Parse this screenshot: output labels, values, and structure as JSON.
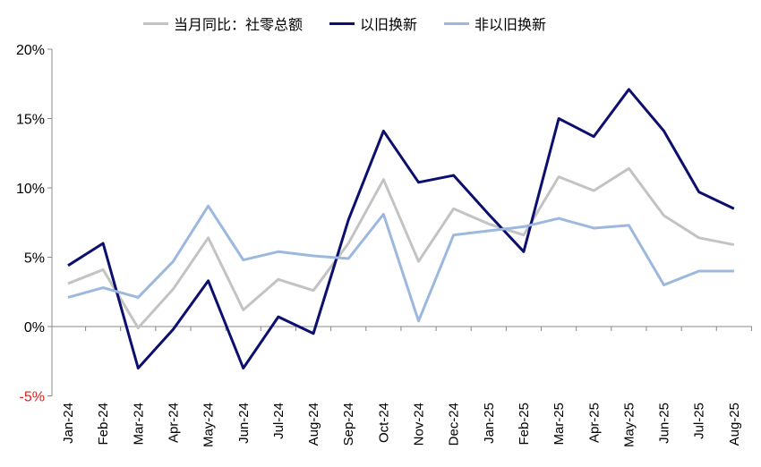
{
  "chart_data": {
    "type": "line",
    "title": "",
    "xlabel": "",
    "ylabel": "",
    "ylim": [
      -5,
      20
    ],
    "yticks": [
      "-5%",
      "0%",
      "5%",
      "10%",
      "15%",
      "20%"
    ],
    "ytick_values": [
      -5,
      0,
      5,
      10,
      15,
      20
    ],
    "negative_tick_color": "#e0201b",
    "legend_position": "top",
    "categories": [
      "Jan-24",
      "Feb-24",
      "Mar-24",
      "Apr-24",
      "May-24",
      "Jun-24",
      "Jul-24",
      "Aug-24",
      "Sep-24",
      "Oct-24",
      "Nov-24",
      "Dec-24",
      "Jan-25",
      "Feb-25",
      "Mar-25",
      "Apr-25",
      "May-25",
      "Jun-25",
      "Jul-25",
      "Aug-25"
    ],
    "series": [
      {
        "name": "当月同比：社零总额",
        "color": "#c3c3c3",
        "values": [
          3.1,
          4.1,
          -0.1,
          2.7,
          6.4,
          1.2,
          3.4,
          2.6,
          6.0,
          10.6,
          4.7,
          8.5,
          7.4,
          6.6,
          10.8,
          9.8,
          11.4,
          8.0,
          6.4,
          5.9
        ]
      },
      {
        "name": "以旧换新",
        "color": "#0c0f6e",
        "values": [
          4.4,
          6.0,
          -3.0,
          -0.2,
          3.3,
          -3.0,
          0.7,
          -0.5,
          7.7,
          14.1,
          10.4,
          10.9,
          8.1,
          5.4,
          15.0,
          13.7,
          17.1,
          14.1,
          9.7,
          8.5
        ]
      },
      {
        "name": "非以旧换新",
        "color": "#9db8de",
        "values": [
          2.1,
          2.8,
          2.1,
          4.7,
          8.7,
          4.8,
          5.4,
          5.1,
          4.9,
          8.1,
          0.4,
          6.6,
          6.9,
          7.2,
          7.8,
          7.1,
          7.3,
          3.0,
          4.0,
          4.0
        ]
      }
    ]
  }
}
